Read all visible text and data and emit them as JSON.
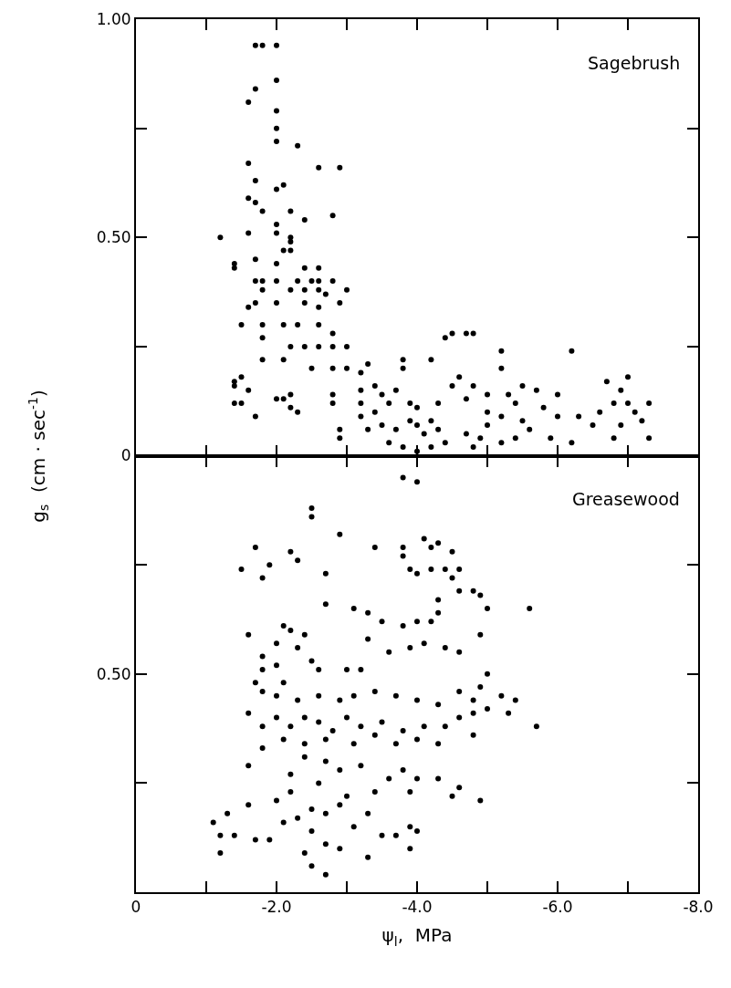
{
  "chart_data": [
    {
      "type": "scatter",
      "annotations": [
        "Sagebrush"
      ],
      "ylabel": "g$_{s}$  (cm · sec$^{-1}$)",
      "marker": "circle",
      "tick_labels": "y",
      "xlim": [
        0,
        -8
      ],
      "xticks": [
        {
          "value": 0,
          "label": null
        },
        {
          "value": -1,
          "label": null
        },
        {
          "value": -2,
          "label": null
        },
        {
          "value": -3,
          "label": null
        },
        {
          "value": -4,
          "label": null
        },
        {
          "value": -5,
          "label": null
        },
        {
          "value": -6,
          "label": null
        },
        {
          "value": -7,
          "label": null
        },
        {
          "value": -8,
          "label": null
        }
      ],
      "ylim": [
        0,
        1
      ],
      "yticks": [
        {
          "value": 0,
          "label": null
        },
        {
          "value": 0.25,
          "label": null
        },
        {
          "value": 0.5,
          "label": "0.50"
        },
        {
          "value": 0.75,
          "label": null
        },
        {
          "value": 1,
          "label": "1.00"
        }
      ],
      "series": [
        {
          "color": "#000000",
          "x": [
            -1.7,
            -1.8,
            -2.0,
            -2.0,
            -1.7,
            -1.6,
            -2.0,
            -2.0,
            -2.0,
            -1.6,
            -2.3,
            -2.6,
            -2.9,
            -1.7,
            -1.7,
            -2.0,
            -2.1,
            -1.6,
            -1.8,
            -2.2,
            -2.4,
            -2.8,
            -2.0,
            -1.2,
            -1.6,
            -2.0,
            -2.2,
            -2.2,
            -2.1,
            -2.2,
            -1.4,
            -1.4,
            -1.7,
            -2.0,
            -2.4,
            -2.6,
            -1.7,
            -1.8,
            -2.0,
            -2.3,
            -2.5,
            -2.6,
            -2.8,
            -1.8,
            -2.2,
            -2.4,
            -2.6,
            -2.7,
            -3.0,
            -1.6,
            -1.7,
            -2.0,
            -2.4,
            -2.6,
            -2.9,
            -1.5,
            -1.8,
            -2.1,
            -2.3,
            -2.6,
            -2.8,
            -1.8,
            -2.2,
            -2.4,
            -2.6,
            -2.8,
            -3.0,
            -1.8,
            -2.1,
            -2.5,
            -2.8,
            -1.4,
            -1.4,
            -1.5,
            -1.6,
            -1.5,
            -1.4,
            -1.7,
            -2.0,
            -2.1,
            -2.2,
            -2.2,
            -2.3,
            -2.8,
            -2.8,
            -2.9,
            -2.9,
            -3.0,
            -3.2,
            -3.3,
            -3.4,
            -3.2,
            -3.5,
            -3.7,
            -3.8,
            -3.8,
            -4.2,
            -4.4,
            -4.5,
            -4.7,
            -4.8,
            -5.2,
            -5.2,
            -6.2,
            -3.2,
            -3.2,
            -3.4,
            -3.6,
            -3.9,
            -4.0,
            -4.3,
            -4.5,
            -4.6,
            -4.8,
            -4.7,
            -5.0,
            -5.3,
            -5.5,
            -5.7,
            -6.0,
            -5.4,
            -5.8,
            -5.0,
            -5.5,
            -3.3,
            -3.5,
            -3.7,
            -3.9,
            -4.0,
            -4.1,
            -4.2,
            -4.3,
            -4.4,
            -4.2,
            -3.8,
            -4.0,
            -3.6,
            -4.7,
            -4.8,
            -5.0,
            -5.2,
            -5.6,
            -5.9,
            -6.0,
            -6.2,
            -6.3,
            -6.5,
            -6.7,
            -6.6,
            -6.8,
            -6.9,
            -7.0,
            -7.0,
            -7.1,
            -7.2,
            -7.3,
            -7.3,
            -6.8,
            -6.9,
            -5.4,
            -5.2,
            -4.9
          ],
          "values": [
            0.94,
            0.94,
            0.94,
            0.86,
            0.84,
            0.81,
            0.79,
            0.75,
            0.72,
            0.67,
            0.71,
            0.66,
            0.66,
            0.63,
            0.58,
            0.61,
            0.62,
            0.59,
            0.56,
            0.56,
            0.54,
            0.55,
            0.53,
            0.5,
            0.51,
            0.51,
            0.5,
            0.49,
            0.47,
            0.47,
            0.44,
            0.43,
            0.45,
            0.44,
            0.43,
            0.43,
            0.4,
            0.4,
            0.4,
            0.4,
            0.4,
            0.4,
            0.4,
            0.38,
            0.38,
            0.38,
            0.38,
            0.37,
            0.38,
            0.34,
            0.35,
            0.35,
            0.35,
            0.34,
            0.35,
            0.3,
            0.3,
            0.3,
            0.3,
            0.3,
            0.28,
            0.27,
            0.25,
            0.25,
            0.25,
            0.25,
            0.25,
            0.22,
            0.22,
            0.2,
            0.2,
            0.17,
            0.16,
            0.18,
            0.15,
            0.12,
            0.12,
            0.09,
            0.13,
            0.13,
            0.14,
            0.11,
            0.1,
            0.14,
            0.12,
            0.06,
            0.04,
            0.2,
            0.19,
            0.21,
            0.16,
            0.15,
            0.14,
            0.15,
            0.22,
            0.2,
            0.22,
            0.27,
            0.28,
            0.28,
            0.28,
            0.2,
            0.24,
            0.24,
            0.12,
            0.09,
            0.1,
            0.12,
            0.12,
            0.11,
            0.12,
            0.16,
            0.18,
            0.16,
            0.13,
            0.14,
            0.14,
            0.16,
            0.15,
            0.14,
            0.12,
            0.11,
            0.1,
            0.08,
            0.06,
            0.07,
            0.06,
            0.08,
            0.07,
            0.05,
            0.08,
            0.06,
            0.03,
            0.02,
            0.02,
            0.01,
            0.03,
            0.05,
            0.02,
            0.07,
            0.09,
            0.06,
            0.04,
            0.09,
            0.03,
            0.09,
            0.07,
            0.17,
            0.1,
            0.12,
            0.15,
            0.18,
            0.12,
            0.1,
            0.08,
            0.12,
            0.04,
            0.04,
            0.07,
            0.04,
            0.03,
            0.04
          ]
        }
      ]
    },
    {
      "type": "scatter",
      "annotations": [
        "Greasewood"
      ],
      "xlabel": "ψ$_{l}$,  MPa",
      "marker": "circle",
      "xlim": [
        0,
        -8
      ],
      "xticks": [
        0,
        {
          "value": -1,
          "label": null
        },
        {
          "value": -2,
          "label": "-2.0"
        },
        {
          "value": -3,
          "label": null
        },
        {
          "value": -4,
          "label": "-4.0"
        },
        {
          "value": -5,
          "label": null
        },
        {
          "value": -6,
          "label": "-6.0"
        },
        {
          "value": -7,
          "label": null
        },
        {
          "value": -8,
          "label": "-8.0"
        }
      ],
      "ylim": [
        1,
        0
      ],
      "yticks": [
        0,
        {
          "value": 0.25,
          "label": null
        },
        {
          "value": 0.5,
          "label": "0.50"
        },
        {
          "value": 0.75,
          "label": null
        }
      ],
      "series": [
        {
          "color": "#000000",
          "x": [
            -3.8,
            -4.0,
            -2.5,
            -2.5,
            -2.9,
            -1.7,
            -2.2,
            -2.3,
            -1.5,
            -1.9,
            -1.8,
            -2.7,
            -3.4,
            -3.8,
            -3.8,
            -4.1,
            -4.2,
            -4.3,
            -4.5,
            -3.9,
            -4.0,
            -4.2,
            -4.4,
            -4.6,
            -4.5,
            -4.6,
            -4.9,
            -5.0,
            -5.6,
            -4.8,
            -4.3,
            -4.3,
            -4.2,
            -4.0,
            -3.8,
            -3.3,
            -3.5,
            -3.1,
            -2.7,
            -2.1,
            -1.6,
            -2.2,
            -2.4,
            -2.3,
            -2.5,
            -2.0,
            -1.8,
            -1.8,
            -2.0,
            -2.1,
            -2.6,
            -3.0,
            -3.2,
            -3.3,
            -3.6,
            -3.9,
            -4.1,
            -4.4,
            -4.6,
            -4.9,
            -5.0,
            -5.4,
            -5.7,
            -5.2,
            -5.3,
            -5.0,
            -4.8,
            -4.8,
            -1.7,
            -1.8,
            -2.0,
            -2.3,
            -2.6,
            -2.9,
            -3.1,
            -3.4,
            -3.7,
            -4.0,
            -4.3,
            -4.6,
            -4.9,
            -1.6,
            -1.8,
            -2.0,
            -2.2,
            -2.4,
            -2.6,
            -2.8,
            -3.0,
            -3.2,
            -3.5,
            -3.8,
            -4.1,
            -4.4,
            -4.6,
            -4.8,
            -2.1,
            -2.4,
            -2.7,
            -3.1,
            -3.4,
            -3.7,
            -4.0,
            -4.3,
            -1.8,
            -2.4,
            -1.6,
            -2.2,
            -2.7,
            -2.9,
            -3.2,
            -3.6,
            -3.8,
            -4.0,
            -4.3,
            -4.6,
            -4.9,
            -4.5,
            -3.9,
            -3.4,
            -3.0,
            -2.6,
            -2.2,
            -2.0,
            -1.3,
            -1.6,
            -1.4,
            -1.2,
            -1.1,
            -1.2,
            -1.7,
            -1.9,
            -2.1,
            -2.3,
            -2.5,
            -2.7,
            -2.5,
            -2.7,
            -2.9,
            -2.5,
            -2.7,
            -3.3,
            -3.5,
            -3.7,
            -3.9,
            -4.0,
            -3.9,
            -3.1,
            -3.3,
            -2.9,
            -2.4
          ],
          "values": [
            0.05,
            0.06,
            0.12,
            0.14,
            0.18,
            0.21,
            0.22,
            0.24,
            0.26,
            0.25,
            0.28,
            0.27,
            0.21,
            0.21,
            0.23,
            0.19,
            0.21,
            0.2,
            0.22,
            0.26,
            0.27,
            0.26,
            0.26,
            0.26,
            0.28,
            0.31,
            0.32,
            0.35,
            0.35,
            0.31,
            0.33,
            0.36,
            0.38,
            0.38,
            0.39,
            0.36,
            0.38,
            0.35,
            0.34,
            0.39,
            0.41,
            0.4,
            0.41,
            0.44,
            0.47,
            0.43,
            0.46,
            0.49,
            0.48,
            0.52,
            0.49,
            0.49,
            0.49,
            0.42,
            0.45,
            0.44,
            0.43,
            0.44,
            0.45,
            0.41,
            0.5,
            0.56,
            0.62,
            0.55,
            0.59,
            0.58,
            0.56,
            0.59,
            0.52,
            0.54,
            0.55,
            0.56,
            0.55,
            0.56,
            0.55,
            0.54,
            0.55,
            0.56,
            0.57,
            0.54,
            0.53,
            0.59,
            0.62,
            0.6,
            0.62,
            0.6,
            0.61,
            0.63,
            0.6,
            0.62,
            0.61,
            0.63,
            0.62,
            0.62,
            0.6,
            0.64,
            0.65,
            0.66,
            0.65,
            0.66,
            0.64,
            0.66,
            0.65,
            0.66,
            0.67,
            0.69,
            0.71,
            0.73,
            0.7,
            0.72,
            0.71,
            0.74,
            0.72,
            0.74,
            0.74,
            0.76,
            0.79,
            0.78,
            0.77,
            0.77,
            0.78,
            0.75,
            0.77,
            0.79,
            0.82,
            0.8,
            0.87,
            0.87,
            0.84,
            0.91,
            0.88,
            0.88,
            0.84,
            0.83,
            0.81,
            0.82,
            0.86,
            0.89,
            0.9,
            0.94,
            0.96,
            0.92,
            0.87,
            0.87,
            0.85,
            0.86,
            0.9,
            0.85,
            0.82,
            0.8,
            0.91
          ]
        }
      ]
    }
  ]
}
